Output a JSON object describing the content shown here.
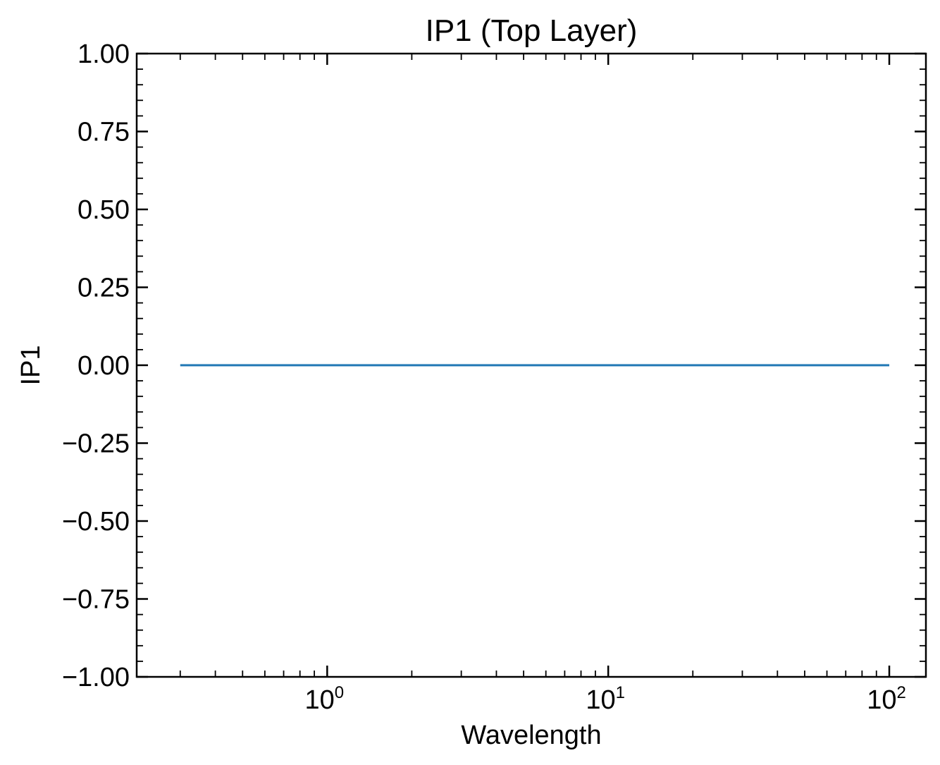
{
  "chart_data": {
    "type": "line",
    "title": "IP1 (Top Layer)",
    "xlabel": "Wavelength",
    "ylabel": "IP1",
    "xscale": "log",
    "xlim": [
      0.21,
      135
    ],
    "ylim": [
      -1.0,
      1.0
    ],
    "grid": false,
    "legend": "none",
    "x_ticks": [
      {
        "value": 1,
        "base": "10",
        "exp": "0"
      },
      {
        "value": 10,
        "base": "10",
        "exp": "1"
      },
      {
        "value": 100,
        "base": "10",
        "exp": "2"
      }
    ],
    "y_ticks": [
      {
        "value": 1.0,
        "label": "1.00"
      },
      {
        "value": 0.75,
        "label": "0.75"
      },
      {
        "value": 0.5,
        "label": "0.50"
      },
      {
        "value": 0.25,
        "label": "0.25"
      },
      {
        "value": 0.0,
        "label": "0.00"
      },
      {
        "value": -0.25,
        "label": "−0.25"
      },
      {
        "value": -0.5,
        "label": "−0.50"
      },
      {
        "value": -0.75,
        "label": "−0.75"
      },
      {
        "value": -1.0,
        "label": "−1.00"
      }
    ],
    "series": [
      {
        "color": "#1f77b4",
        "x": [
          0.3,
          0.5,
          1,
          2,
          5,
          10,
          20,
          50,
          100
        ],
        "y": [
          0,
          0,
          0,
          0,
          0,
          0,
          0,
          0,
          0
        ]
      }
    ]
  }
}
